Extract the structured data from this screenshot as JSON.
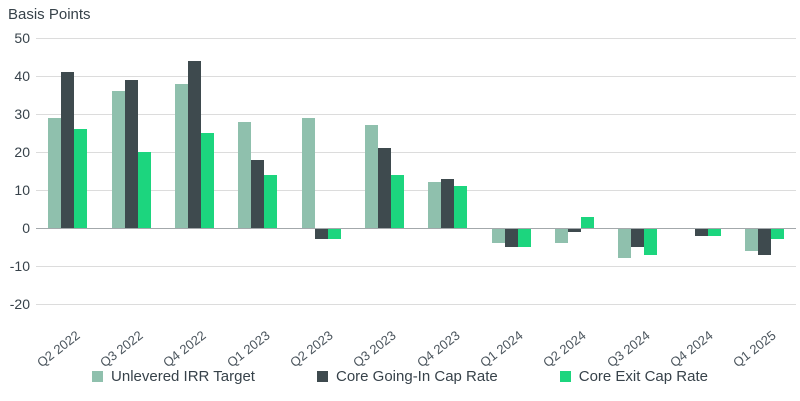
{
  "title": "Basis Points",
  "colors": {
    "series_sage": "#8FC0AD",
    "series_charcoal": "#3E4A4E",
    "series_emerald": "#1CD57E",
    "gridline": "#DCDCDC",
    "zero_line": "#A3A8AB",
    "text": "#37424A"
  },
  "chart_data": {
    "type": "bar",
    "title": "Basis Points",
    "xlabel": "",
    "ylabel": "Basis Points",
    "ylim": [
      -20,
      50
    ],
    "yticks": [
      50,
      40,
      30,
      20,
      10,
      0,
      -10,
      -20
    ],
    "grid": true,
    "legend_position": "bottom",
    "categories": [
      "Q2 2022",
      "Q3 2022",
      "Q4 2022",
      "Q1 2023",
      "Q2 2023",
      "Q3 2023",
      "Q4 2023",
      "Q1 2024",
      "Q2 2024",
      "Q3 2024",
      "Q4 2024",
      "Q1 2025"
    ],
    "series": [
      {
        "name": "Unlevered IRR Target",
        "color": "#8FC0AD",
        "values": [
          29,
          36,
          38,
          28,
          29,
          27,
          12,
          -4,
          -4,
          -8,
          0,
          -6
        ]
      },
      {
        "name": "Core Going-In Cap Rate",
        "color": "#3E4A4E",
        "values": [
          41,
          39,
          44,
          18,
          -3,
          21,
          13,
          -5,
          -1,
          -5,
          -2,
          -7
        ]
      },
      {
        "name": "Core Exit Cap Rate",
        "color": "#1CD57E",
        "values": [
          26,
          20,
          25,
          14,
          -3,
          14,
          11,
          -5,
          3,
          -7,
          -2,
          -3
        ]
      }
    ]
  }
}
